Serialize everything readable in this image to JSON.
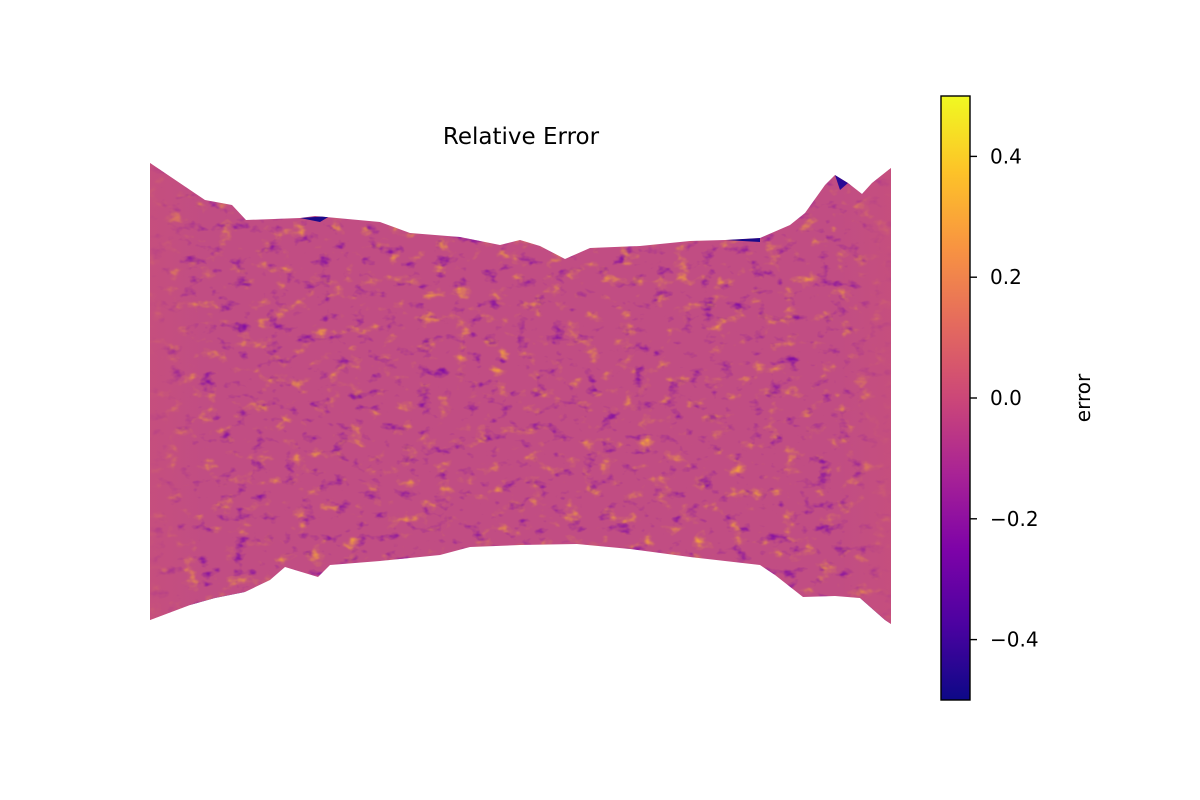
{
  "chart_data": {
    "type": "heatmap",
    "title": "Relative Error",
    "colormap": "plasma",
    "colorbar": {
      "label": "error",
      "range": [
        -0.5,
        0.5
      ],
      "ticks": [
        0.4,
        0.2,
        0.0,
        -0.2,
        -0.4
      ],
      "tick_labels": [
        "0.4",
        "0.2",
        "0.0",
        "−0.2",
        "−0.4"
      ]
    },
    "axes": "off",
    "field_shape": "specimen cross-section, narrower at the middle (dog-bone)",
    "value_summary": {
      "typical_value": -0.05,
      "min_seen": -0.5,
      "max_seen": 0.45
    }
  },
  "colors": {
    "background": "#ffffff",
    "axis": "#000000"
  }
}
